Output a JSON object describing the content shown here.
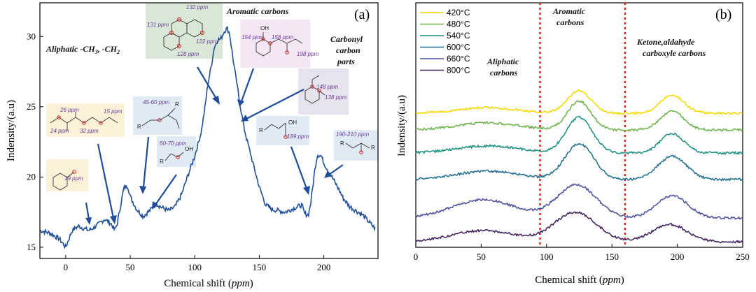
{
  "chart_data": [
    {
      "type": "line",
      "panel": "(a)",
      "xlabel": "Chemical shift (ppm)",
      "ylabel": "Indensity/(a.u)",
      "xlim": [
        -20,
        242
      ],
      "ylim": [
        14.2,
        32.4
      ],
      "xticks": [
        0,
        50,
        100,
        150,
        200
      ],
      "yticks": [
        15,
        20,
        25,
        30
      ],
      "color": "#1f4e99",
      "x": [
        -20,
        -12,
        -5,
        0,
        5,
        10,
        15,
        18,
        20,
        25,
        30,
        35,
        38,
        40,
        45,
        48,
        50,
        55,
        58,
        60,
        65,
        70,
        75,
        80,
        85,
        90,
        95,
        100,
        105,
        108,
        110,
        113,
        115,
        118,
        120,
        123,
        125,
        127,
        130,
        132,
        135,
        138,
        140,
        145,
        150,
        155,
        160,
        165,
        170,
        175,
        180,
        183,
        185,
        188,
        190,
        193,
        195,
        198,
        200,
        205,
        210,
        215,
        220,
        225,
        230,
        235,
        240
      ],
      "y": [
        16.2,
        16.0,
        15.6,
        15.0,
        16.2,
        16.5,
        16.3,
        16.2,
        16.3,
        16.6,
        17.0,
        16.7,
        16.2,
        16.7,
        19.2,
        19.4,
        18.6,
        17.7,
        17.4,
        17.2,
        17.6,
        18.1,
        17.8,
        17.6,
        17.9,
        18.8,
        20.2,
        21.5,
        23.2,
        25.0,
        26.5,
        28.0,
        29.2,
        29.8,
        29.8,
        30.4,
        30.6,
        30.2,
        28.2,
        27.0,
        25.2,
        23.6,
        22.8,
        21.0,
        19.3,
        18.0,
        17.7,
        17.6,
        17.5,
        17.7,
        17.9,
        18.0,
        17.4,
        17.3,
        18.2,
        20.5,
        21.6,
        21.5,
        21.0,
        20.2,
        19.4,
        18.5,
        17.9,
        17.6,
        17.3,
        16.8,
        16.3
      ],
      "annotations": [
        {
          "text": "Aromatic carbons"
        },
        {
          "text": "Aliphatic -CH3, -CH2"
        },
        {
          "text": "Carbonyl carbon parts"
        }
      ]
    },
    {
      "type": "line",
      "panel": "(b)",
      "xlabel": "Chemical shift (ppm)",
      "ylabel": "Indensity/(a.u)",
      "xlim": [
        0,
        250
      ],
      "xticks": [
        0,
        50,
        100,
        150,
        200,
        250
      ],
      "vlines": [
        95,
        160
      ],
      "regions": [
        "Aliphatic carbons",
        "Aromatic carbons",
        "Ketone,aldahyde carboxyle carbons"
      ],
      "series": [
        {
          "name": "420°C",
          "color": "#f5d800",
          "offset": 162,
          "peaks": [
            [
              55,
              8,
              22
            ],
            [
              125,
              32,
              9
            ],
            [
              196,
              26,
              9
            ]
          ]
        },
        {
          "name": "480°C",
          "color": "#6ab24a",
          "offset": 186,
          "peaks": [
            [
              55,
              10,
              24
            ],
            [
              125,
              41,
              9
            ],
            [
              196,
              27,
              9
            ]
          ]
        },
        {
          "name": "540°C",
          "color": "#1a8f80",
          "offset": 219,
          "peaks": [
            [
              55,
              10,
              24
            ],
            [
              125,
              51,
              10
            ],
            [
              196,
              28,
              9
            ]
          ]
        },
        {
          "name": "600°C",
          "color": "#1e6d8f",
          "offset": 257,
          "peaks": [
            [
              55,
              12,
              24
            ],
            [
              125,
              51,
              11
            ],
            [
              196,
              33,
              11
            ]
          ]
        },
        {
          "name": "660°C",
          "color": "#4b4f99",
          "offset": 312,
          "peaks": [
            [
              52,
              26,
              24
            ],
            [
              123,
              47,
              15
            ],
            [
              196,
              32,
              12
            ]
          ]
        },
        {
          "name": "800°C",
          "color": "#3e1e5a",
          "offset": 346,
          "peaks": [
            [
              52,
              16,
              24
            ],
            [
              122,
              42,
              16
            ],
            [
              194,
              25,
              13
            ]
          ]
        }
      ]
    }
  ],
  "panel_a": {
    "label": "(a)",
    "xlabel_text": "Chemical shift (",
    "xlabel_unit": "ppm",
    "xlabel_close": ")",
    "ylabel": "Indensity/(a.u)",
    "aromatic_title": "Aromatic carbons",
    "aliphatic_title_main": "Aliphatic -CH",
    "aliphatic_sub1": "3",
    "aliphatic_mid": ", -CH",
    "aliphatic_sub2": "2",
    "carbonyl_l1": "Carbonyl",
    "carbonyl_l2": "carbon",
    "carbonyl_l3": "parts",
    "ppm_labels": {
      "p132": "132 ppm",
      "p131": "131 ppm",
      "p122": "122 ppm",
      "p128": "128 ppm",
      "p154": "154 ppm",
      "p158": "158 ppm",
      "p198": "198 ppm",
      "p148": "148 ppm",
      "p138": "138 ppm",
      "p45": "45-60 ppm",
      "p60": "60-70 ppm",
      "p26": "26 ppm",
      "p15": "15 ppm",
      "p24": "24 ppm",
      "p32": "32 ppm",
      "p19": "19 ppm",
      "p189": "189 ppm",
      "p190": "190-210 ppm"
    },
    "atoms": {
      "OH": "OH",
      "R": "R",
      "O": "O"
    }
  },
  "panel_b": {
    "label": "(b)",
    "xlabel_text": "Chemical shift (",
    "xlabel_unit": "ppm",
    "xlabel_close": ")",
    "ylabel": "Indensity/(a.u)",
    "region_aliphatic_l1": "Aliphatic",
    "region_aliphatic_l2": "carbons",
    "region_aromatic_l1": "Aromatic",
    "region_aromatic_l2": "carbons",
    "region_ketone_l1": "Ketone,aldahyde",
    "region_ketone_l2": "carboxyle carbons"
  }
}
